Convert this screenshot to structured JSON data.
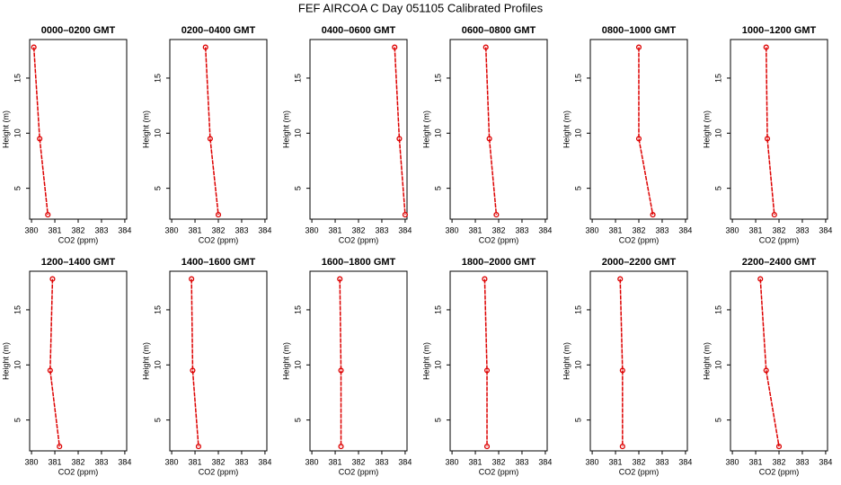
{
  "title": "FEF AIRCOA C  Day 051105  Calibrated Profiles",
  "chart_data": [
    {
      "type": "line",
      "title": "0000–0200 GMT",
      "xlabel": "CO2 (ppm)",
      "ylabel": "Height (m)",
      "color": "#dd0000",
      "x": [
        380.1,
        380.35,
        380.7
      ],
      "values": [
        17.8,
        9.5,
        2.6
      ],
      "xlim": [
        379.92,
        384.08
      ],
      "ylim": [
        2.2,
        18.5
      ],
      "xticks": [
        380,
        381,
        382,
        383,
        384
      ],
      "yticks": [
        5,
        10,
        15
      ]
    },
    {
      "type": "line",
      "title": "0200–0400 GMT",
      "xlabel": "CO2 (ppm)",
      "ylabel": "Height (m)",
      "color": "#dd0000",
      "x": [
        381.45,
        381.65,
        382.0
      ],
      "values": [
        17.8,
        9.5,
        2.6
      ],
      "xlim": [
        379.92,
        384.08
      ],
      "ylim": [
        2.2,
        18.5
      ],
      "xticks": [
        380,
        381,
        382,
        383,
        384
      ],
      "yticks": [
        5,
        10,
        15
      ]
    },
    {
      "type": "line",
      "title": "0400–0600 GMT",
      "xlabel": "CO2 (ppm)",
      "ylabel": "Height (m)",
      "color": "#dd0000",
      "x": [
        383.55,
        383.75,
        384.0
      ],
      "values": [
        17.8,
        9.5,
        2.6
      ],
      "xlim": [
        379.92,
        384.08
      ],
      "ylim": [
        2.2,
        18.5
      ],
      "xticks": [
        380,
        381,
        382,
        383,
        384
      ],
      "yticks": [
        5,
        10,
        15
      ]
    },
    {
      "type": "line",
      "title": "0600–0800 GMT",
      "xlabel": "CO2 (ppm)",
      "ylabel": "Height (m)",
      "color": "#dd0000",
      "x": [
        381.45,
        381.6,
        381.9
      ],
      "values": [
        17.8,
        9.5,
        2.6
      ],
      "xlim": [
        379.92,
        384.08
      ],
      "ylim": [
        2.2,
        18.5
      ],
      "xticks": [
        380,
        381,
        382,
        383,
        384
      ],
      "yticks": [
        5,
        10,
        15
      ]
    },
    {
      "type": "line",
      "title": "0800–1000 GMT",
      "xlabel": "CO2 (ppm)",
      "ylabel": "Height (m)",
      "color": "#dd0000",
      "x": [
        382.0,
        382.0,
        382.6
      ],
      "values": [
        17.8,
        9.5,
        2.6
      ],
      "xlim": [
        379.92,
        384.08
      ],
      "ylim": [
        2.2,
        18.5
      ],
      "xticks": [
        380,
        381,
        382,
        383,
        384
      ],
      "yticks": [
        5,
        10,
        15
      ]
    },
    {
      "type": "line",
      "title": "1000–1200 GMT",
      "xlabel": "CO2 (ppm)",
      "ylabel": "Height (m)",
      "color": "#dd0000",
      "x": [
        381.45,
        381.5,
        381.8
      ],
      "values": [
        17.8,
        9.5,
        2.6
      ],
      "xlim": [
        379.92,
        384.08
      ],
      "ylim": [
        2.2,
        18.5
      ],
      "xticks": [
        380,
        381,
        382,
        383,
        384
      ],
      "yticks": [
        5,
        10,
        15
      ]
    },
    {
      "type": "line",
      "title": "1200–1400 GMT",
      "xlabel": "CO2 (ppm)",
      "ylabel": "Height (m)",
      "color": "#dd0000",
      "x": [
        380.9,
        380.8,
        381.2
      ],
      "values": [
        17.8,
        9.5,
        2.6
      ],
      "xlim": [
        379.92,
        384.08
      ],
      "ylim": [
        2.2,
        18.5
      ],
      "xticks": [
        380,
        381,
        382,
        383,
        384
      ],
      "yticks": [
        5,
        10,
        15
      ]
    },
    {
      "type": "line",
      "title": "1400–1600 GMT",
      "xlabel": "CO2 (ppm)",
      "ylabel": "Height (m)",
      "color": "#dd0000",
      "x": [
        380.85,
        380.9,
        381.15
      ],
      "values": [
        17.8,
        9.5,
        2.6
      ],
      "xlim": [
        379.92,
        384.08
      ],
      "ylim": [
        2.2,
        18.5
      ],
      "xticks": [
        380,
        381,
        382,
        383,
        384
      ],
      "yticks": [
        5,
        10,
        15
      ]
    },
    {
      "type": "line",
      "title": "1600–1800 GMT",
      "xlabel": "CO2 (ppm)",
      "ylabel": "Height (m)",
      "color": "#dd0000",
      "x": [
        381.2,
        381.25,
        381.25
      ],
      "values": [
        17.8,
        9.5,
        2.6
      ],
      "xlim": [
        379.92,
        384.08
      ],
      "ylim": [
        2.2,
        18.5
      ],
      "xticks": [
        380,
        381,
        382,
        383,
        384
      ],
      "yticks": [
        5,
        10,
        15
      ]
    },
    {
      "type": "line",
      "title": "1800–2000 GMT",
      "xlabel": "CO2 (ppm)",
      "ylabel": "Height (m)",
      "color": "#dd0000",
      "x": [
        381.4,
        381.5,
        381.5
      ],
      "values": [
        17.8,
        9.5,
        2.6
      ],
      "xlim": [
        379.92,
        384.08
      ],
      "ylim": [
        2.2,
        18.5
      ],
      "xticks": [
        380,
        381,
        382,
        383,
        384
      ],
      "yticks": [
        5,
        10,
        15
      ]
    },
    {
      "type": "line",
      "title": "2000–2200 GMT",
      "xlabel": "CO2 (ppm)",
      "ylabel": "Height (m)",
      "color": "#dd0000",
      "x": [
        381.2,
        381.3,
        381.3
      ],
      "values": [
        17.8,
        9.5,
        2.6
      ],
      "xlim": [
        379.92,
        384.08
      ],
      "ylim": [
        2.2,
        18.5
      ],
      "xticks": [
        380,
        381,
        382,
        383,
        384
      ],
      "yticks": [
        5,
        10,
        15
      ]
    },
    {
      "type": "line",
      "title": "2200–2400 GMT",
      "xlabel": "CO2 (ppm)",
      "ylabel": "Height (m)",
      "color": "#dd0000",
      "x": [
        381.2,
        381.45,
        382.0
      ],
      "values": [
        17.8,
        9.5,
        2.6
      ],
      "xlim": [
        379.92,
        384.08
      ],
      "ylim": [
        2.2,
        18.5
      ],
      "xticks": [
        380,
        381,
        382,
        383,
        384
      ],
      "yticks": [
        5,
        10,
        15
      ]
    }
  ]
}
